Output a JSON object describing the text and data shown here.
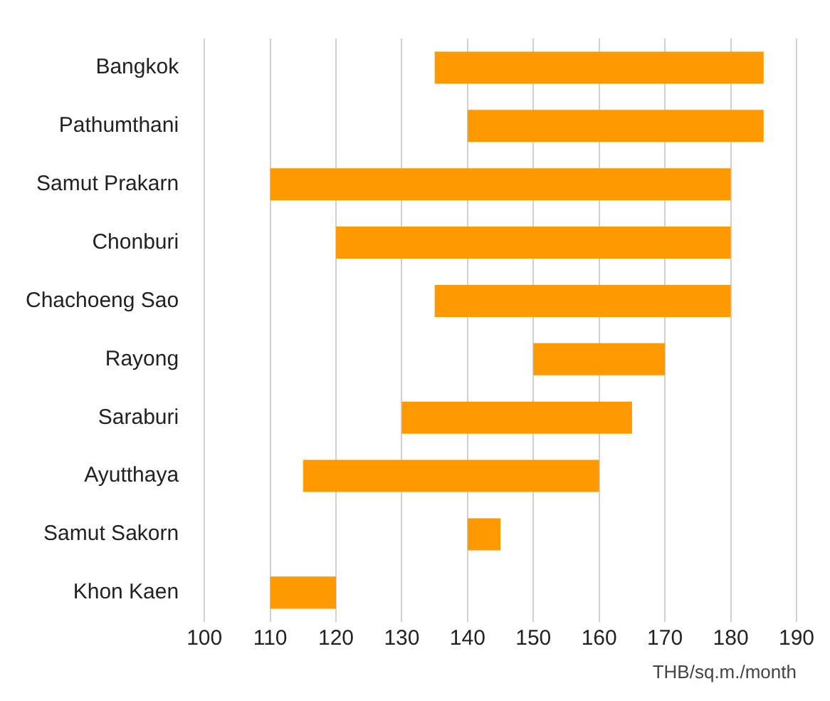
{
  "chart_data": {
    "type": "bar",
    "orientation": "horizontal",
    "xlabel": "THB/sq.m./month",
    "categories": [
      "Bangkok",
      "Pathumthani",
      "Samut Prakarn",
      "Chonburi",
      "Chachoeng Sao",
      "Rayong",
      "Saraburi",
      "Ayutthaya",
      "Samut Sakorn",
      "Khon Kaen"
    ],
    "base": [
      135,
      140,
      110,
      120,
      135,
      150,
      130,
      115,
      140,
      110
    ],
    "values": [
      50,
      45,
      70,
      60,
      45,
      20,
      35,
      45,
      5,
      10
    ],
    "color": "#ff9900",
    "xlim": [
      100,
      190
    ],
    "xticks": [
      100,
      110,
      120,
      130,
      140,
      150,
      160,
      170,
      180,
      190
    ],
    "grid": "x"
  }
}
